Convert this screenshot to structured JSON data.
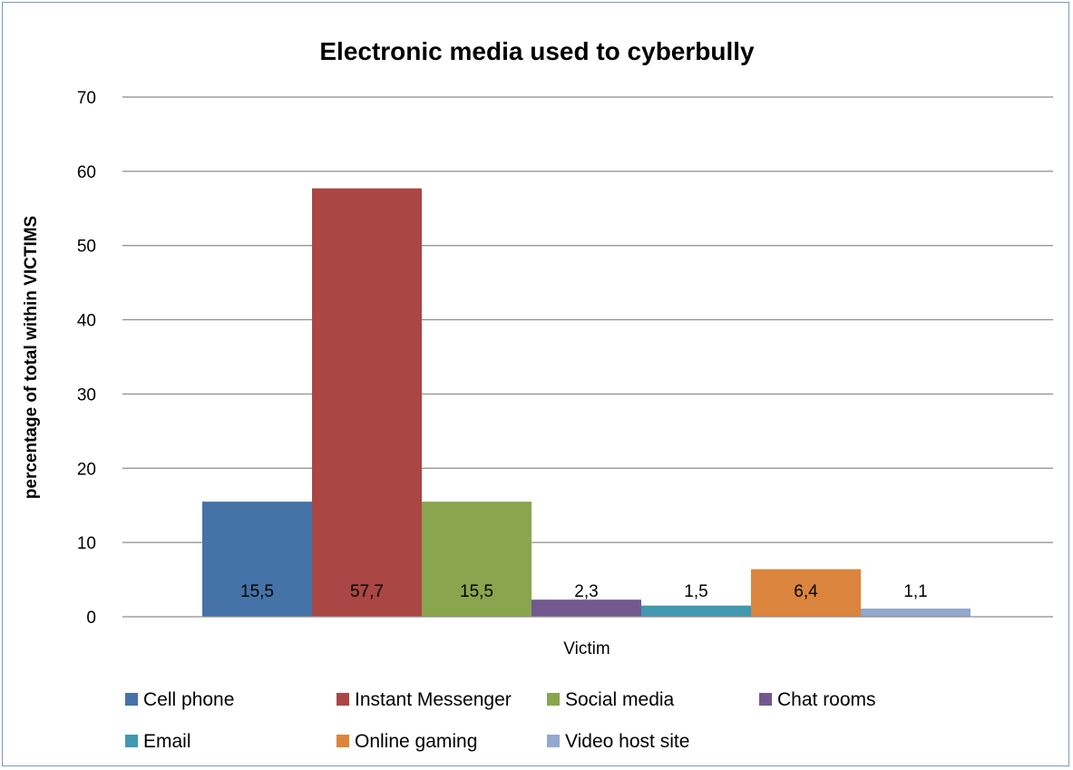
{
  "chart_data": {
    "type": "bar",
    "title": "Electronic media used to cyberbully",
    "xlabel": "Victim",
    "ylabel": "percentage of total within VICTIMS",
    "categories": [
      "Victim"
    ],
    "ylim": [
      0,
      70
    ],
    "yticks": [
      0,
      10,
      20,
      30,
      40,
      50,
      60,
      70
    ],
    "grid": true,
    "legend_position": "bottom",
    "series": [
      {
        "name": "Cell phone",
        "values": [
          15.5
        ],
        "label": "15,5",
        "color": "#4572a7"
      },
      {
        "name": "Instant Messenger",
        "values": [
          57.7
        ],
        "label": "57,7",
        "color": "#aa4643"
      },
      {
        "name": "Social media",
        "values": [
          15.5
        ],
        "label": "15,5",
        "color": "#89a54e"
      },
      {
        "name": "Chat rooms",
        "values": [
          2.3
        ],
        "label": "2,3",
        "color": "#71588f"
      },
      {
        "name": "Email",
        "values": [
          1.5
        ],
        "label": "1,5",
        "color": "#4198af"
      },
      {
        "name": "Online gaming",
        "values": [
          6.4
        ],
        "label": "6,4",
        "color": "#db843d"
      },
      {
        "name": "Video host site",
        "values": [
          1.1
        ],
        "label": "1,1",
        "color": "#93a9cf"
      }
    ]
  }
}
